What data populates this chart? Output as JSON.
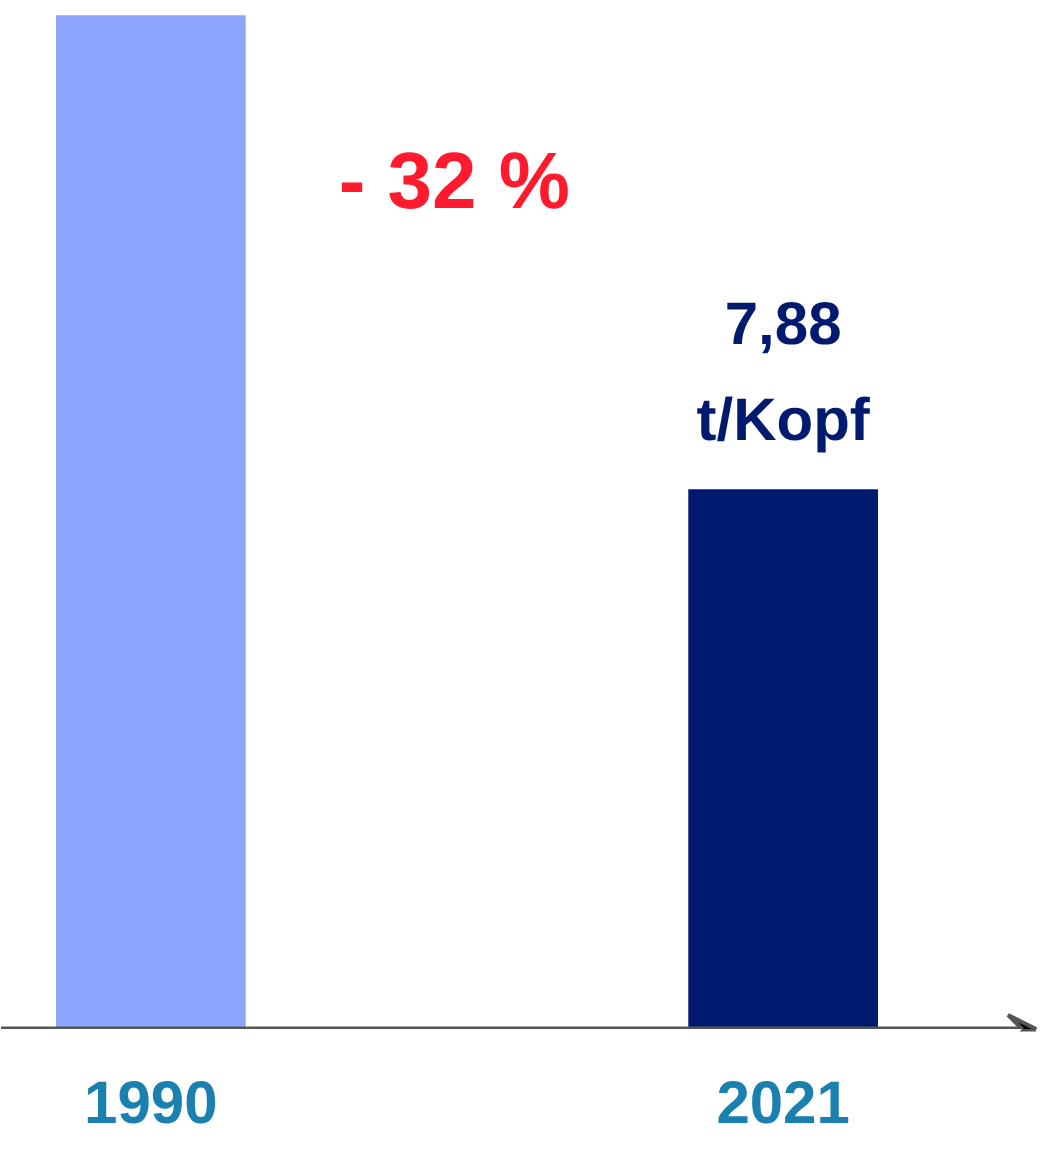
{
  "chart_data": {
    "type": "bar",
    "categories": [
      "1990",
      "2021"
    ],
    "colors": [
      "#8ea6ff",
      "#001a70"
    ],
    "values": [
      14.8,
      7.88
    ],
    "value_labels": [
      null,
      "7,88\nt/Kopf"
    ],
    "tick_labels": "x",
    "annotations": [
      "- 32 %"
    ]
  }
}
